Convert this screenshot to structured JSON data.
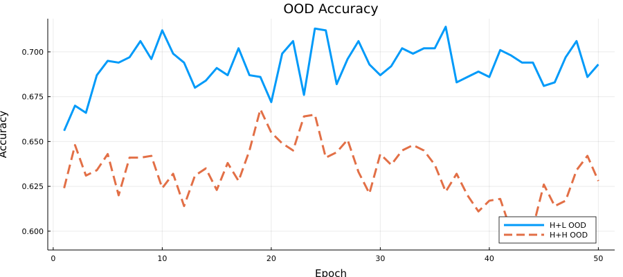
{
  "chart_data": {
    "type": "line",
    "title": "OOD Accuracy",
    "xlabel": "Epoch",
    "ylabel": "Accuracy",
    "xlim": [
      -0.5,
      51.5
    ],
    "ylim": [
      0.5895,
      0.7185
    ],
    "xticks": [
      0,
      10,
      20,
      30,
      40,
      50
    ],
    "yticks": [
      0.6,
      0.625,
      0.65,
      0.675,
      0.7
    ],
    "ytick_labels": [
      "0.600",
      "0.625",
      "0.650",
      "0.675",
      "0.700"
    ],
    "grid": true,
    "legend_position": "bottom-right",
    "x": [
      1,
      2,
      3,
      4,
      5,
      6,
      7,
      8,
      9,
      10,
      11,
      12,
      13,
      14,
      15,
      16,
      17,
      18,
      19,
      20,
      21,
      22,
      23,
      24,
      25,
      26,
      27,
      28,
      29,
      30,
      31,
      32,
      33,
      34,
      35,
      36,
      37,
      38,
      39,
      40,
      41,
      42,
      43,
      44,
      45,
      46,
      47,
      48,
      49,
      50
    ],
    "series": [
      {
        "name": "H+L OOD",
        "color": "#009af9",
        "dash": "solid",
        "values": [
          0.656,
          0.67,
          0.666,
          0.687,
          0.695,
          0.694,
          0.697,
          0.706,
          0.696,
          0.712,
          0.699,
          0.694,
          0.68,
          0.684,
          0.691,
          0.687,
          0.702,
          0.687,
          0.686,
          0.672,
          0.699,
          0.706,
          0.676,
          0.713,
          0.712,
          0.682,
          0.696,
          0.706,
          0.693,
          0.687,
          0.692,
          0.702,
          0.699,
          0.702,
          0.702,
          0.714,
          0.683,
          0.686,
          0.689,
          0.686,
          0.701,
          0.698,
          0.694,
          0.694,
          0.681,
          0.683,
          0.697,
          0.706,
          0.686,
          0.693
        ]
      },
      {
        "name": "H+H OOD",
        "color": "#e26f46",
        "dash": "dashed",
        "values": [
          0.624,
          0.648,
          0.631,
          0.634,
          0.643,
          0.62,
          0.641,
          0.641,
          0.642,
          0.624,
          0.632,
          0.614,
          0.631,
          0.635,
          0.623,
          0.638,
          0.628,
          0.645,
          0.668,
          0.655,
          0.649,
          0.645,
          0.664,
          0.665,
          0.641,
          0.644,
          0.651,
          0.633,
          0.621,
          0.643,
          0.637,
          0.645,
          0.648,
          0.645,
          0.637,
          0.622,
          0.632,
          0.62,
          0.611,
          0.617,
          0.618,
          0.6,
          0.598,
          0.602,
          0.626,
          0.614,
          0.617,
          0.634,
          0.642,
          0.628
        ]
      }
    ],
    "last_value_h": 0.628
  }
}
